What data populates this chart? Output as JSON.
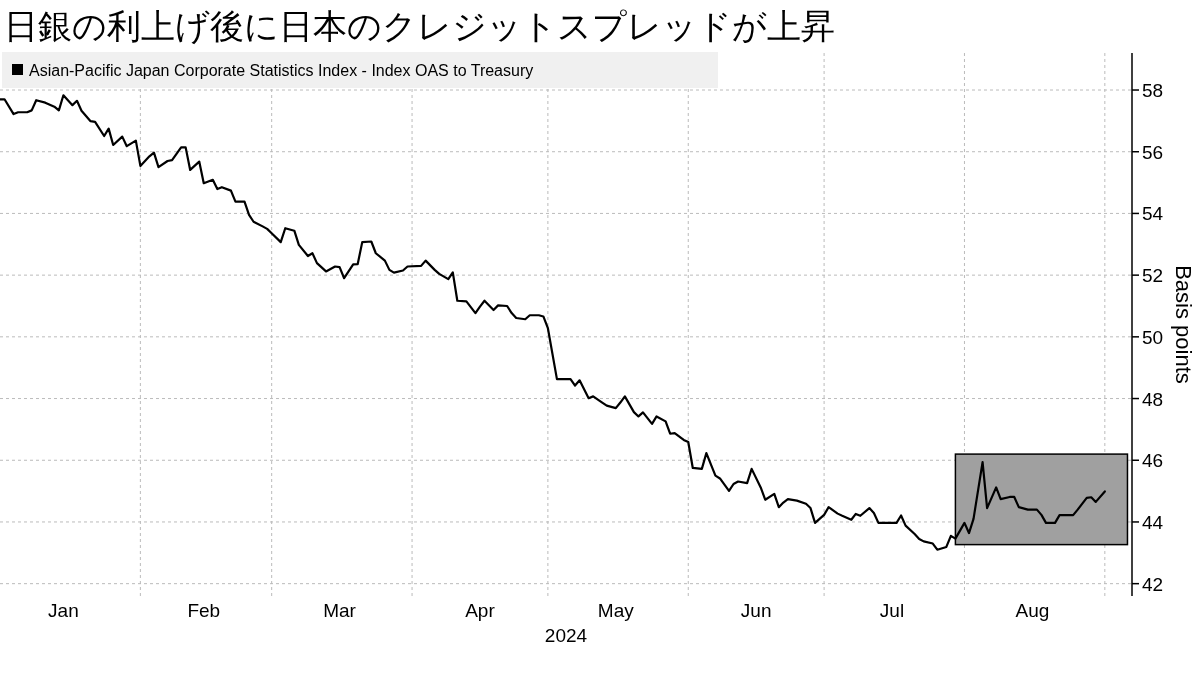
{
  "chart_data": {
    "type": "line",
    "title": "日銀の利上げ後に日本のクレジットスプレッドが上昇",
    "ylabel": "Basis points",
    "xlabel": "2024",
    "x": [
      "2024-01-01",
      "2024-01-02",
      "2024-01-04",
      "2024-01-05",
      "2024-01-07",
      "2024-01-08",
      "2024-01-09",
      "2024-01-11",
      "2024-01-13",
      "2024-01-14",
      "2024-01-15",
      "2024-01-17",
      "2024-01-18",
      "2024-01-19",
      "2024-01-21",
      "2024-01-22",
      "2024-01-24",
      "2024-01-25",
      "2024-01-26",
      "2024-01-28",
      "2024-01-29",
      "2024-01-31",
      "2024-02-01",
      "2024-02-03",
      "2024-02-04",
      "2024-02-05",
      "2024-02-07",
      "2024-02-08",
      "2024-02-10",
      "2024-02-11",
      "2024-02-12",
      "2024-02-14",
      "2024-02-15",
      "2024-02-17",
      "2024-02-18",
      "2024-02-19",
      "2024-02-21",
      "2024-02-22",
      "2024-02-24",
      "2024-02-25",
      "2024-02-26",
      "2024-02-28",
      "2024-02-29",
      "2024-03-01",
      "2024-03-03",
      "2024-03-04",
      "2024-03-06",
      "2024-03-07",
      "2024-03-09",
      "2024-03-10",
      "2024-03-11",
      "2024-03-13",
      "2024-03-15",
      "2024-03-16",
      "2024-03-17",
      "2024-03-19",
      "2024-03-20",
      "2024-03-21",
      "2024-03-23",
      "2024-03-24",
      "2024-03-26",
      "2024-03-27",
      "2024-03-28",
      "2024-03-30",
      "2024-03-31",
      "2024-04-03",
      "2024-04-04",
      "2024-04-06",
      "2024-04-07",
      "2024-04-09",
      "2024-04-10",
      "2024-04-11",
      "2024-04-13",
      "2024-04-15",
      "2024-04-16",
      "2024-04-17",
      "2024-04-19",
      "2024-04-20",
      "2024-04-22",
      "2024-04-23",
      "2024-04-24",
      "2024-04-26",
      "2024-04-27",
      "2024-04-29",
      "2024-04-30",
      "2024-05-01",
      "2024-05-03",
      "2024-05-04",
      "2024-05-06",
      "2024-05-07",
      "2024-05-08",
      "2024-05-10",
      "2024-05-11",
      "2024-05-13",
      "2024-05-14",
      "2024-05-16",
      "2024-05-17",
      "2024-05-18",
      "2024-05-20",
      "2024-05-21",
      "2024-05-22",
      "2024-05-24",
      "2024-05-25",
      "2024-05-27",
      "2024-05-28",
      "2024-05-29",
      "2024-05-31",
      "2024-06-01",
      "2024-06-02",
      "2024-06-04",
      "2024-06-05",
      "2024-06-07",
      "2024-06-08",
      "2024-06-10",
      "2024-06-11",
      "2024-06-12",
      "2024-06-14",
      "2024-06-15",
      "2024-06-17",
      "2024-06-18",
      "2024-06-20",
      "2024-06-21",
      "2024-06-22",
      "2024-06-23",
      "2024-06-25",
      "2024-06-27",
      "2024-06-28",
      "2024-06-29",
      "2024-07-01",
      "2024-07-02",
      "2024-07-04",
      "2024-07-05",
      "2024-07-07",
      "2024-07-08",
      "2024-07-09",
      "2024-07-11",
      "2024-07-12",
      "2024-07-13",
      "2024-07-15",
      "2024-07-17",
      "2024-07-18",
      "2024-07-19",
      "2024-07-21",
      "2024-07-22",
      "2024-07-23",
      "2024-07-25",
      "2024-07-26",
      "2024-07-28",
      "2024-07-29",
      "2024-07-30",
      "2024-08-01",
      "2024-08-02",
      "2024-08-03",
      "2024-08-05",
      "2024-08-06",
      "2024-08-08",
      "2024-08-09",
      "2024-08-11",
      "2024-08-12",
      "2024-08-13",
      "2024-08-15",
      "2024-08-17",
      "2024-08-18",
      "2024-08-19",
      "2024-08-21",
      "2024-08-22",
      "2024-08-23",
      "2024-08-25",
      "2024-08-26",
      "2024-08-28",
      "2024-08-29",
      "2024-08-30",
      "2024-09-01"
    ],
    "series": [
      {
        "name": "Asian-Pacific Japan Corporate Statistics Index - Index OAS to Treasury",
        "color": "#000000",
        "values": [
          57.7,
          57.7,
          57.22,
          57.28,
          57.28,
          57.34,
          57.67,
          57.59,
          57.46,
          57.34,
          57.83,
          57.51,
          57.65,
          57.33,
          56.99,
          56.97,
          56.51,
          56.75,
          56.22,
          56.49,
          56.18,
          56.36,
          55.54,
          55.85,
          55.97,
          55.5,
          55.7,
          55.73,
          56.14,
          56.14,
          55.41,
          55.68,
          54.98,
          55.09,
          54.79,
          54.85,
          54.74,
          54.38,
          54.38,
          53.95,
          53.73,
          53.58,
          53.5,
          53.36,
          53.07,
          53.52,
          53.44,
          52.98,
          52.62,
          52.71,
          52.39,
          52.12,
          52.28,
          52.26,
          51.9,
          52.35,
          52.36,
          53.07,
          53.09,
          52.71,
          52.47,
          52.17,
          52.08,
          52.15,
          52.28,
          52.3,
          52.47,
          52.17,
          52.04,
          51.87,
          52.09,
          51.17,
          51.15,
          50.77,
          50.98,
          51.17,
          50.87,
          51.02,
          51.0,
          50.77,
          50.61,
          50.57,
          50.7,
          50.7,
          50.66,
          50.28,
          48.63,
          48.63,
          48.63,
          48.42,
          48.59,
          48.01,
          48.07,
          47.87,
          47.77,
          47.69,
          47.87,
          48.07,
          47.56,
          47.42,
          47.55,
          47.18,
          47.42,
          47.26,
          46.86,
          46.88,
          46.66,
          46.59,
          45.75,
          45.72,
          46.23,
          45.5,
          45.41,
          45.01,
          45.23,
          45.31,
          45.26,
          45.72,
          45.12,
          44.72,
          44.91,
          44.48,
          44.63,
          44.74,
          44.69,
          44.59,
          44.45,
          43.97,
          44.23,
          44.48,
          44.27,
          44.2,
          44.07,
          44.26,
          44.2,
          44.45,
          44.29,
          43.97,
          43.97,
          43.97,
          44.21,
          43.88,
          43.61,
          43.45,
          43.37,
          43.3,
          43.1,
          43.19,
          43.55,
          43.46,
          43.97,
          43.64,
          44.1,
          45.94,
          44.45,
          45.12,
          44.74,
          44.81,
          44.81,
          44.48,
          44.4,
          44.4,
          44.23,
          43.97,
          43.97,
          44.22,
          44.22,
          44.22,
          44.4,
          44.78,
          44.8,
          44.65,
          44.99
        ]
      }
    ],
    "xlim": [
      "2024-01-01",
      "2024-09-07"
    ],
    "xticks": [
      {
        "value": "2024-01-15",
        "label": "Jan"
      },
      {
        "value": "2024-02-01",
        "label": null
      },
      {
        "value": "2024-02-15",
        "label": "Feb"
      },
      {
        "value": "2024-03-01",
        "label": null
      },
      {
        "value": "2024-03-16",
        "label": "Mar"
      },
      {
        "value": "2024-04-01",
        "label": null
      },
      {
        "value": "2024-04-16",
        "label": "Apr"
      },
      {
        "value": "2024-05-01",
        "label": null
      },
      {
        "value": "2024-05-16",
        "label": "May"
      },
      {
        "value": "2024-06-01",
        "label": null
      },
      {
        "value": "2024-06-16",
        "label": "Jun"
      },
      {
        "value": "2024-07-01",
        "label": null
      },
      {
        "value": "2024-07-16",
        "label": "Jul"
      },
      {
        "value": "2024-08-01",
        "label": null
      },
      {
        "value": "2024-08-16",
        "label": "Aug"
      },
      {
        "value": "2024-09-01",
        "label": null
      }
    ],
    "ylim": [
      41.6,
      59.2
    ],
    "yticks": [
      42,
      44,
      46,
      48,
      50,
      52,
      54,
      56,
      58
    ],
    "bands": [
      {
        "axis": "x",
        "from": "2024-07-30",
        "to": "2024-09-06",
        "color": "#a0a0a0"
      }
    ],
    "grid": true,
    "legend": "top left",
    "line_style": "solid",
    "marker": "none"
  }
}
